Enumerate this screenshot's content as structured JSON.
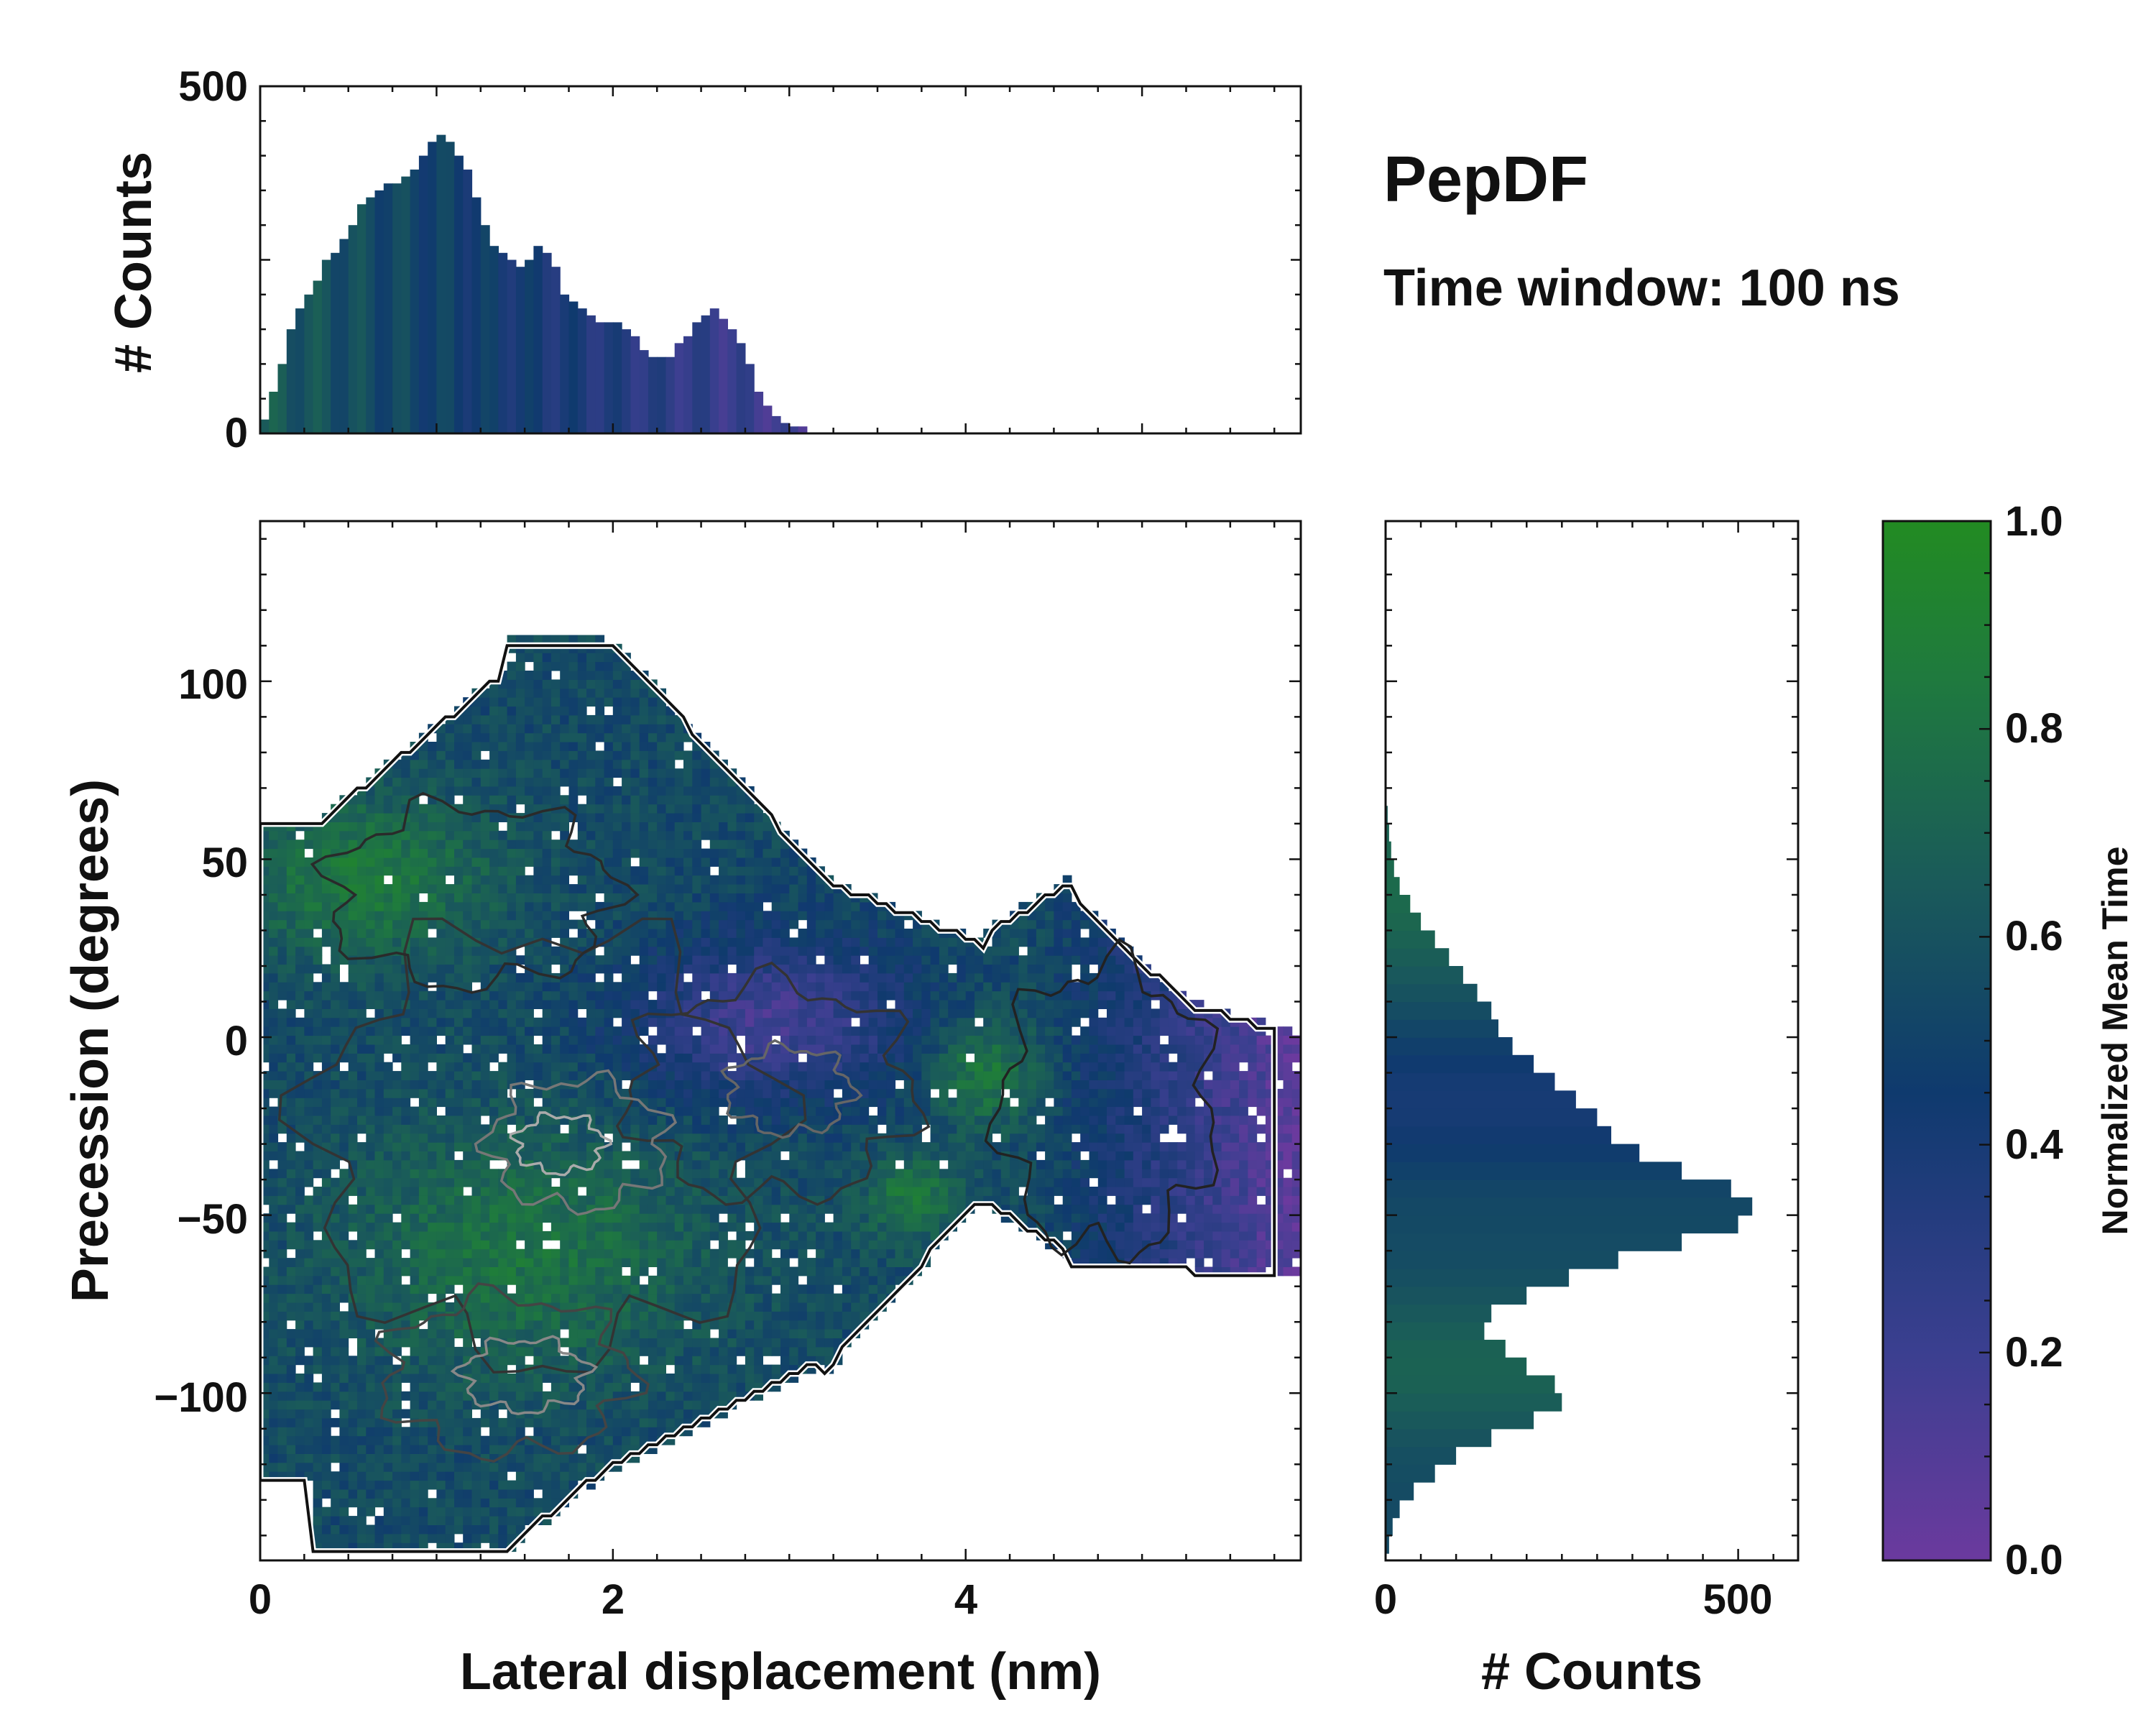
{
  "chart_data": {
    "type": "heatmap",
    "title": "PepDF",
    "subtitle": "Time window: 100 ns",
    "main": {
      "xlabel": "Lateral displacement (nm)",
      "ylabel": "Precession (degrees)",
      "xlim": [
        0,
        5.9
      ],
      "ylim": [
        -147,
        145
      ],
      "xticks": [
        "0",
        "2",
        "4"
      ],
      "xtick_values": [
        0,
        2,
        4
      ],
      "yticks": [
        "100",
        "50",
        "0",
        "−50",
        "−100"
      ],
      "ytick_values": [
        100,
        50,
        0,
        -50,
        -100
      ],
      "description_value": "Normalized mean time per bin",
      "contours": true
    },
    "top_hist": {
      "ylabel": "# Counts",
      "ylim": [
        0,
        500
      ],
      "yticks": [
        "500",
        "0"
      ],
      "ytick_values": [
        500,
        0
      ],
      "bin_start": 0,
      "bin_width": 0.05,
      "counts": [
        20,
        60,
        100,
        150,
        180,
        200,
        220,
        250,
        260,
        280,
        300,
        330,
        340,
        350,
        360,
        360,
        370,
        380,
        400,
        420,
        430,
        420,
        400,
        380,
        340,
        300,
        270,
        260,
        250,
        240,
        250,
        270,
        260,
        240,
        200,
        190,
        180,
        170,
        160,
        160,
        160,
        150,
        140,
        120,
        110,
        110,
        110,
        130,
        140,
        160,
        170,
        180,
        165,
        150,
        130,
        100,
        60,
        40,
        25,
        15,
        10,
        10
      ]
    },
    "right_hist": {
      "xlabel": "# Counts",
      "xlim": [
        0,
        585
      ],
      "xticks": [
        "0",
        "500"
      ],
      "xtick_values": [
        0,
        500
      ],
      "bin_start": -145,
      "bin_width": 5,
      "counts": [
        5,
        10,
        20,
        40,
        70,
        100,
        150,
        210,
        250,
        240,
        200,
        170,
        140,
        150,
        200,
        260,
        330,
        420,
        500,
        520,
        490,
        420,
        360,
        320,
        300,
        270,
        240,
        210,
        180,
        160,
        150,
        130,
        110,
        90,
        70,
        50,
        35,
        20,
        12,
        8,
        5,
        3
      ]
    },
    "colorbar": {
      "label": "Normalized Mean Time",
      "range": [
        0.0,
        1.0
      ],
      "ticks": [
        "0.0",
        "0.2",
        "0.4",
        "0.6",
        "0.8",
        "1.0"
      ],
      "tick_values": [
        0.0,
        0.2,
        0.4,
        0.6,
        0.8,
        1.0
      ],
      "colors": [
        "#6b3a9e",
        "#3b3f90",
        "#0f3a6e",
        "#1a5a5a",
        "#1f7a3e",
        "#228b22"
      ]
    }
  }
}
